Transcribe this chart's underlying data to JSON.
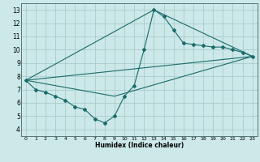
{
  "xlabel": "Humidex (Indice chaleur)",
  "ylabel": "",
  "background_color": "#cce8e8",
  "grid_color": "#aacccc",
  "line_color": "#1a6b6b",
  "xlim": [
    -0.5,
    23.5
  ],
  "ylim": [
    3.5,
    13.5
  ],
  "xticks": [
    0,
    1,
    2,
    3,
    4,
    5,
    6,
    7,
    8,
    9,
    10,
    11,
    12,
    13,
    14,
    15,
    16,
    17,
    18,
    19,
    20,
    21,
    22,
    23
  ],
  "yticks": [
    4,
    5,
    6,
    7,
    8,
    9,
    10,
    11,
    12,
    13
  ],
  "series": [
    {
      "x": [
        0,
        1,
        2,
        3,
        4,
        5,
        6,
        7,
        8,
        9,
        10,
        11,
        12,
        13,
        14,
        15,
        16,
        17,
        18,
        19,
        20,
        21,
        22,
        23
      ],
      "y": [
        7.7,
        7.0,
        6.8,
        6.5,
        6.2,
        5.7,
        5.5,
        4.8,
        4.5,
        5.0,
        6.5,
        7.3,
        10.0,
        13.0,
        12.5,
        11.5,
        10.5,
        10.4,
        10.3,
        10.2,
        10.2,
        10.0,
        9.8,
        9.5
      ],
      "marker": "D",
      "markersize": 2.0
    },
    {
      "x": [
        0,
        23
      ],
      "y": [
        7.7,
        9.5
      ],
      "marker": null,
      "markersize": 0
    },
    {
      "x": [
        0,
        9,
        23
      ],
      "y": [
        7.7,
        6.5,
        9.5
      ],
      "marker": null,
      "markersize": 0
    },
    {
      "x": [
        0,
        13,
        23
      ],
      "y": [
        7.7,
        13.0,
        9.5
      ],
      "marker": null,
      "markersize": 0
    }
  ]
}
